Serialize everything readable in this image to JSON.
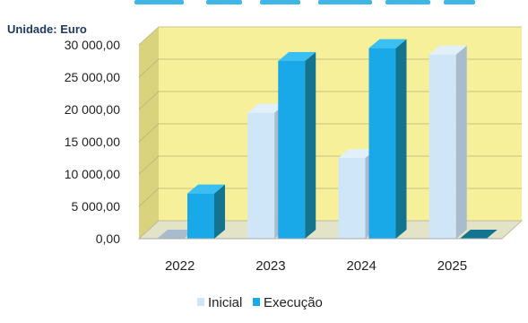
{
  "chart_data": {
    "type": "bar",
    "unit_label": "Unidade: Euro",
    "categories": [
      "2022",
      "2023",
      "2024",
      "2025"
    ],
    "series": [
      {
        "name": "Inicial",
        "values": [
          0,
          19500,
          12500,
          28500
        ]
      },
      {
        "name": "Execução",
        "values": [
          7000,
          27500,
          29500,
          0
        ]
      }
    ],
    "ylim": [
      0,
      30000
    ],
    "y_ticks": [
      "0,00",
      "5 000,00",
      "10 000,00",
      "15 000,00",
      "20 000,00",
      "25 000,00",
      "30 000,00"
    ],
    "grid": true,
    "legend_position": "bottom",
    "colors": {
      "inicial_front": "#cfe6f8",
      "inicial_side": "#a9bccd",
      "inicial_top": "#e2f0fb",
      "execucao_front": "#1aa9e8",
      "execucao_side": "#13748f",
      "execucao_top": "#3bbff2",
      "back_wall": "#f7f09a",
      "side_wall": "#d9d37e",
      "floor": "#e3e3c7"
    }
  }
}
